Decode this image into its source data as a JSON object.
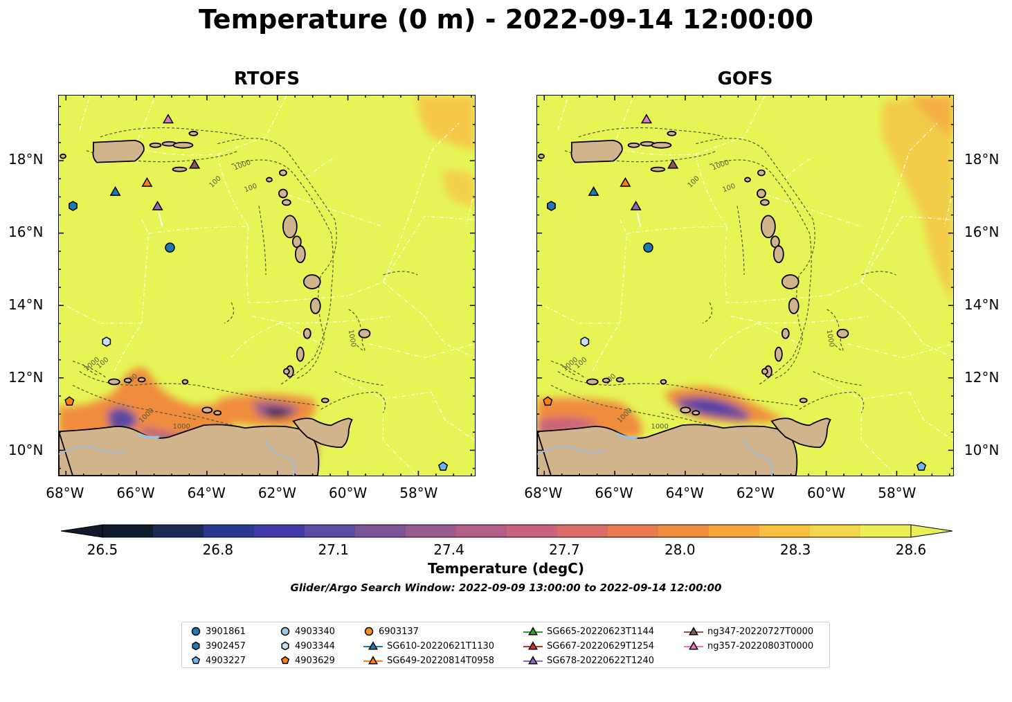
{
  "title": "Temperature (0 m) - 2022-09-14 12:00:00",
  "panels": [
    {
      "title": "RTOFS",
      "model": "rtofs"
    },
    {
      "title": "GOFS",
      "model": "gofs"
    }
  ],
  "axes": {
    "lon_ticks": [
      "68°W",
      "66°W",
      "64°W",
      "62°W",
      "60°W",
      "58°W"
    ],
    "lat_ticks": [
      "18°N",
      "16°N",
      "14°N",
      "12°N",
      "10°N"
    ],
    "lon_range": [
      -68.2,
      -56.4
    ],
    "lat_range": [
      9.3,
      19.8
    ]
  },
  "contour_labels": [
    "100",
    "1000"
  ],
  "colorbar": {
    "label": "Temperature (degC)",
    "ticks": [
      "26.5",
      "26.8",
      "27.1",
      "27.4",
      "27.7",
      "28.0",
      "28.3",
      "28.6"
    ],
    "range": [
      26.5,
      28.6
    ],
    "extend": "both",
    "colors": [
      "#0d1b2a",
      "#1b2a55",
      "#2a3890",
      "#3f3aa6",
      "#5a4aa0",
      "#7a5296",
      "#9a5a8e",
      "#b25e86",
      "#c8647c",
      "#dc6c68",
      "#ea7a50",
      "#f08c3e",
      "#f6a53a",
      "#f7bf42",
      "#f3d54c",
      "#e9ef55"
    ]
  },
  "search_window": "Glider/Argo Search Window: 2022-09-09 13:00:00 to 2022-09-14 12:00:00",
  "legend": {
    "items": [
      {
        "label": "3901861",
        "marker": "circle",
        "color": "#1f77b4"
      },
      {
        "label": "3902457",
        "marker": "hexagon",
        "color": "#1f77b4"
      },
      {
        "label": "4903227",
        "marker": "pentagon",
        "color": "#6fb8e6"
      },
      {
        "label": "4903340",
        "marker": "circle",
        "color": "#9ecae1"
      },
      {
        "label": "4903344",
        "marker": "hexagon",
        "color": "#c6e2f5"
      },
      {
        "label": "4903629",
        "marker": "pentagon",
        "color": "#ff7f0e"
      },
      {
        "label": "6903137",
        "marker": "circle",
        "color": "#f28e2b"
      },
      {
        "label": "SG610-20220621T1130",
        "marker": "triangle",
        "color": "#1f77b4"
      },
      {
        "label": "SG649-20220814T0958",
        "marker": "triangle",
        "color": "#ff7f0e"
      },
      {
        "label": "SG665-20220623T1144",
        "marker": "triangle",
        "color": "#2ca02c"
      },
      {
        "label": "SG667-20220629T1254",
        "marker": "triangle",
        "color": "#d62728"
      },
      {
        "label": "SG678-20220622T1240",
        "marker": "triangle",
        "color": "#9467bd"
      },
      {
        "label": "ng347-20220727T0000",
        "marker": "triangle",
        "color": "#8c564b"
      },
      {
        "label": "ng357-20220803T0000",
        "marker": "triangle",
        "color": "#e377c2"
      }
    ]
  },
  "markers": [
    {
      "id": "3902457",
      "lon": -67.8,
      "lat": 16.75,
      "marker": "hexagon",
      "color": "#1f77b4"
    },
    {
      "id": "3901861",
      "lon": -65.05,
      "lat": 15.6,
      "marker": "circle",
      "color": "#1f77b4"
    },
    {
      "id": "4903344",
      "lon": -66.85,
      "lat": 13.0,
      "marker": "hexagon",
      "color": "#c6e2f5"
    },
    {
      "id": "4903629",
      "lon": -67.9,
      "lat": 11.35,
      "marker": "pentagon",
      "color": "#ff7f0e"
    },
    {
      "id": "4903227",
      "lon": -57.3,
      "lat": 9.55,
      "marker": "pentagon",
      "color": "#6fb8e6"
    },
    {
      "id": "SG610-20220621T1130",
      "lon": -66.6,
      "lat": 17.15,
      "marker": "triangle",
      "color": "#1f77b4"
    },
    {
      "id": "SG649-20220814T0958",
      "lon": -65.7,
      "lat": 17.4,
      "marker": "triangle",
      "color": "#ff7f0e"
    },
    {
      "id": "SG678-20220622T1240",
      "lon": -65.4,
      "lat": 16.75,
      "marker": "triangle",
      "color": "#9467bd"
    },
    {
      "id": "ng347-20220727T0000",
      "lon": -64.35,
      "lat": 17.9,
      "marker": "triangle",
      "color": "#8c564b"
    },
    {
      "id": "ng357-20220803T0000",
      "lon": -65.1,
      "lat": 19.15,
      "marker": "triangle",
      "color": "#e377c2"
    }
  ]
}
